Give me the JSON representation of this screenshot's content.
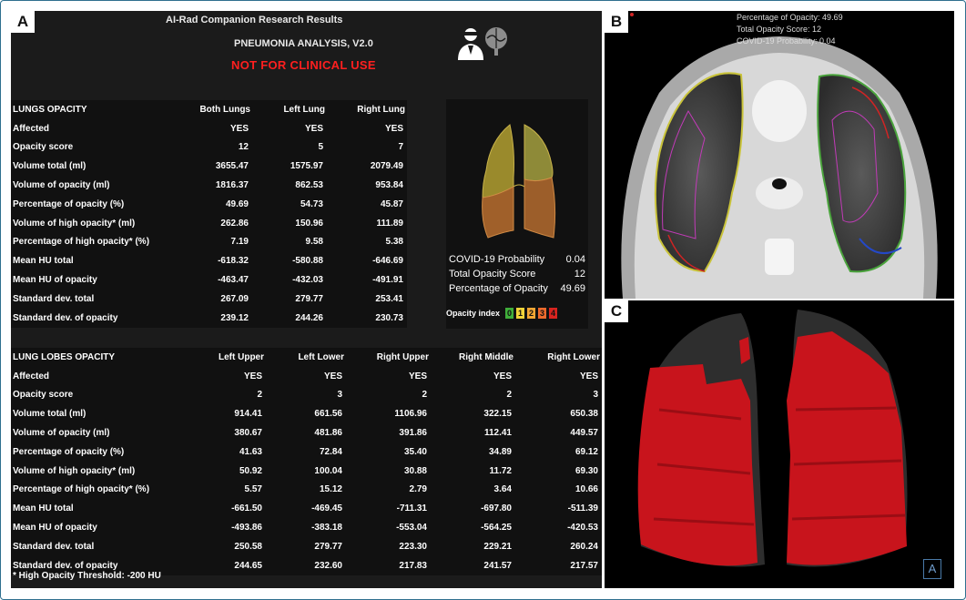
{
  "panels": {
    "a": "A",
    "b": "B",
    "c": "C"
  },
  "header": {
    "title": "AI-Rad Companion Research Results",
    "subtitle": "PNEUMONIA ANALYSIS, V2.0",
    "warning": "NOT FOR CLINICAL USE"
  },
  "lungs_table": {
    "title": "LUNGS OPACITY",
    "columns": [
      "Both Lungs",
      "Left Lung",
      "Right Lung"
    ],
    "rows": [
      {
        "label": "Affected",
        "values": [
          "YES",
          "YES",
          "YES"
        ]
      },
      {
        "label": "Opacity score",
        "values": [
          "12",
          "5",
          "7"
        ]
      },
      {
        "label": "Volume total (ml)",
        "values": [
          "3655.47",
          "1575.97",
          "2079.49"
        ]
      },
      {
        "label": "Volume of opacity (ml)",
        "values": [
          "1816.37",
          "862.53",
          "953.84"
        ]
      },
      {
        "label": "Percentage of opacity (%)",
        "values": [
          "49.69",
          "54.73",
          "45.87"
        ]
      },
      {
        "label": "Volume of high opacity* (ml)",
        "values": [
          "262.86",
          "150.96",
          "111.89"
        ]
      },
      {
        "label": "Percentage of high opacity* (%)",
        "values": [
          "7.19",
          "9.58",
          "5.38"
        ]
      },
      {
        "label": "Mean HU total",
        "values": [
          "-618.32",
          "-580.88",
          "-646.69"
        ]
      },
      {
        "label": "Mean HU of opacity",
        "values": [
          "-463.47",
          "-432.03",
          "-491.91"
        ]
      },
      {
        "label": "Standard dev. total",
        "values": [
          "267.09",
          "279.77",
          "253.41"
        ]
      },
      {
        "label": "Standard dev. of opacity",
        "values": [
          "239.12",
          "244.26",
          "230.73"
        ]
      }
    ]
  },
  "covid_summary": {
    "probability_label": "COVID-19 Probability",
    "probability_value": "0.04",
    "score_label": "Total Opacity Score",
    "score_value": "12",
    "percentage_label": "Percentage of Opacity",
    "percentage_value": "49.69",
    "index_label": "Opacity index",
    "index_levels": [
      "0",
      "1",
      "2",
      "3",
      "4"
    ],
    "index_colors": [
      "#3fae3a",
      "#f2d43a",
      "#f3a634",
      "#ec6a2c",
      "#d8241f"
    ]
  },
  "lobes_table": {
    "title": "LUNG LOBES OPACITY",
    "columns": [
      "Left Upper",
      "Left Lower",
      "Right Upper",
      "Right Middle",
      "Right Lower"
    ],
    "rows": [
      {
        "label": "Affected",
        "values": [
          "YES",
          "YES",
          "YES",
          "YES",
          "YES"
        ]
      },
      {
        "label": "Opacity score",
        "values": [
          "2",
          "3",
          "2",
          "2",
          "3"
        ]
      },
      {
        "label": "Volume total (ml)",
        "values": [
          "914.41",
          "661.56",
          "1106.96",
          "322.15",
          "650.38"
        ]
      },
      {
        "label": "Volume of opacity (ml)",
        "values": [
          "380.67",
          "481.86",
          "391.86",
          "112.41",
          "449.57"
        ]
      },
      {
        "label": "Percentage of opacity (%)",
        "values": [
          "41.63",
          "72.84",
          "35.40",
          "34.89",
          "69.12"
        ]
      },
      {
        "label": "Volume of high opacity* (ml)",
        "values": [
          "50.92",
          "100.04",
          "30.88",
          "11.72",
          "69.30"
        ]
      },
      {
        "label": "Percentage of high opacity* (%)",
        "values": [
          "5.57",
          "15.12",
          "2.79",
          "3.64",
          "10.66"
        ]
      },
      {
        "label": "Mean HU total",
        "values": [
          "-661.50",
          "-469.45",
          "-711.31",
          "-697.80",
          "-511.39"
        ]
      },
      {
        "label": "Mean HU of opacity",
        "values": [
          "-493.86",
          "-383.18",
          "-553.04",
          "-564.25",
          "-420.53"
        ]
      },
      {
        "label": "Standard dev. total",
        "values": [
          "250.58",
          "279.77",
          "223.30",
          "229.21",
          "260.24"
        ]
      },
      {
        "label": "Standard dev. of opacity",
        "values": [
          "244.65",
          "232.60",
          "217.83",
          "241.57",
          "217.57"
        ]
      }
    ]
  },
  "footnote": "* High Opacity Threshold: -200 HU",
  "ct_overlay": {
    "line1": "Percentage of Opacity: 49.69",
    "line2": "Total Opacity Score: 12",
    "line3": "COVID-19 Probability: 0.04"
  },
  "render_label": "A"
}
